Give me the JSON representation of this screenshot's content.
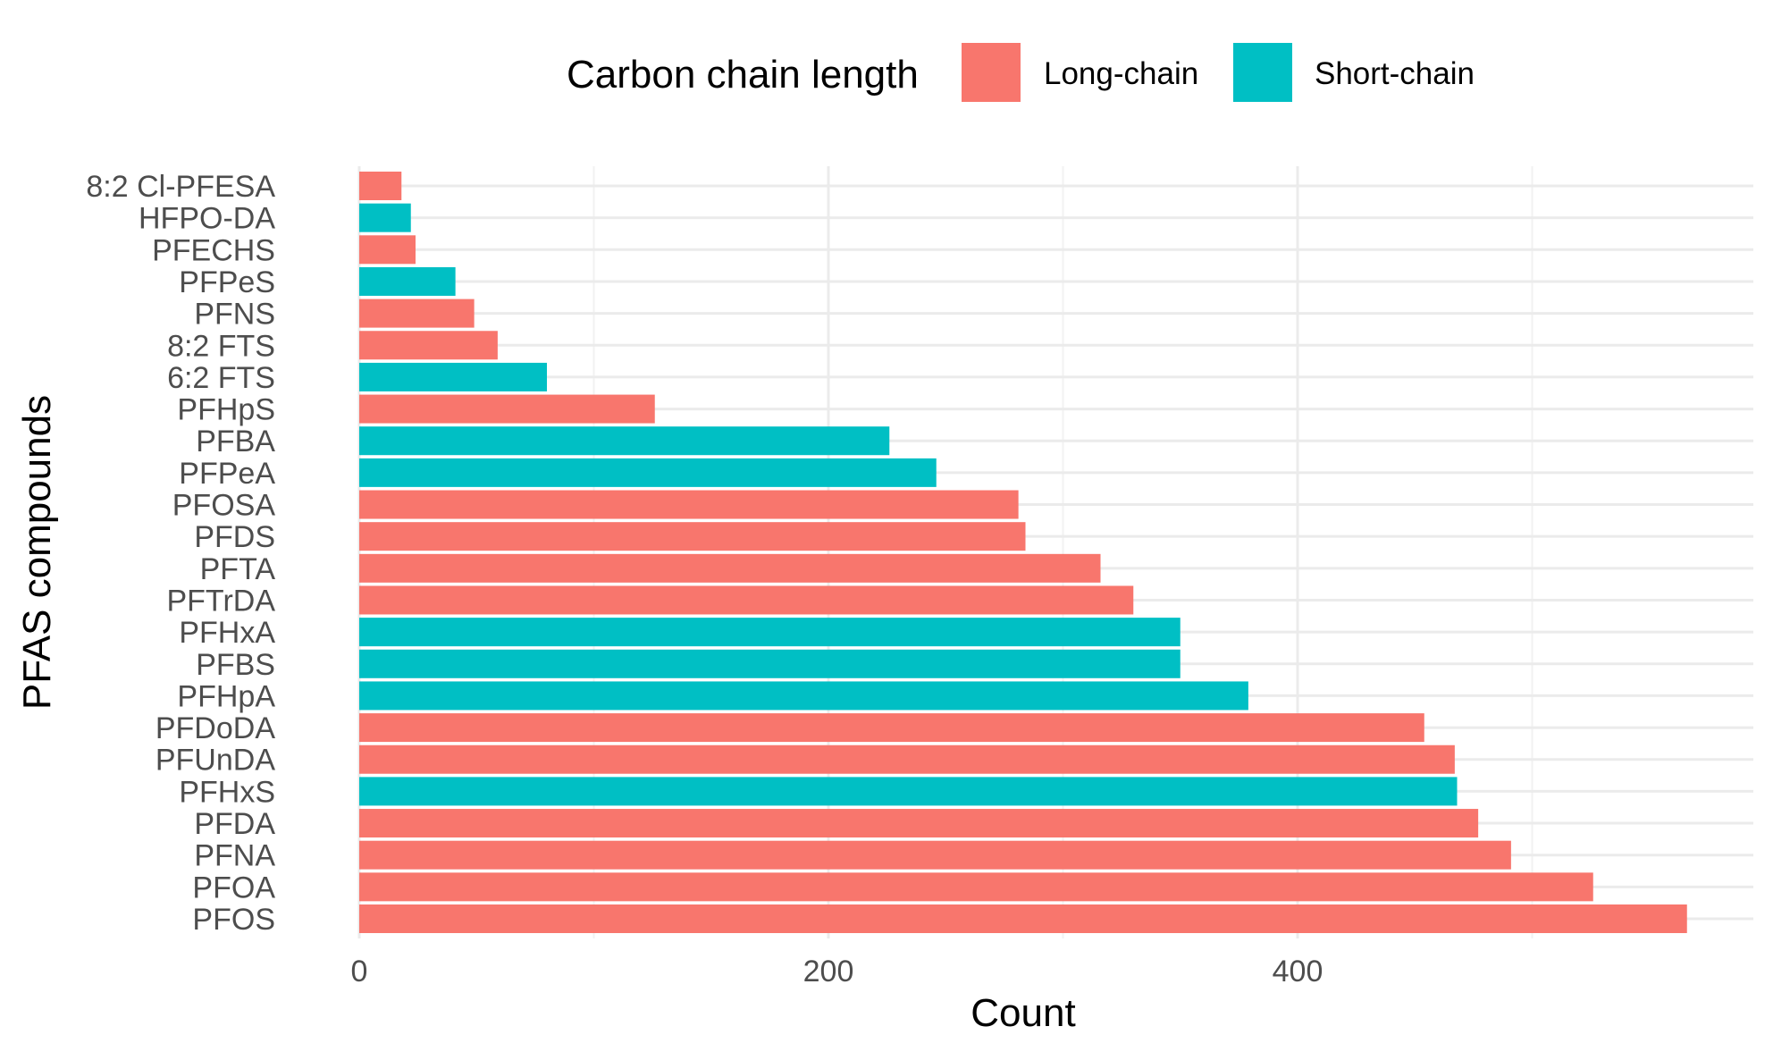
{
  "chart_data": {
    "type": "bar",
    "orientation": "horizontal",
    "title": "",
    "xlabel": "Count",
    "ylabel": "PFAS compounds",
    "xlim": [
      0,
      565
    ],
    "xticks": [
      0,
      200,
      400
    ],
    "minor_gridlines": [
      100,
      300,
      500
    ],
    "grid": true,
    "legend": {
      "title": "Carbon chain length",
      "position": "top",
      "entries": [
        {
          "label": "Long-chain",
          "color": "#F8766D"
        },
        {
          "label": "Short-chain",
          "color": "#00BFC4"
        }
      ]
    },
    "bars": [
      {
        "category": "8:2 Cl-PFESA",
        "value": 18,
        "group": "Long-chain"
      },
      {
        "category": "HFPO-DA",
        "value": 22,
        "group": "Short-chain"
      },
      {
        "category": "PFECHS",
        "value": 24,
        "group": "Long-chain"
      },
      {
        "category": "PFPeS",
        "value": 41,
        "group": "Short-chain"
      },
      {
        "category": "PFNS",
        "value": 49,
        "group": "Long-chain"
      },
      {
        "category": "8:2 FTS",
        "value": 59,
        "group": "Long-chain"
      },
      {
        "category": "6:2 FTS",
        "value": 80,
        "group": "Short-chain"
      },
      {
        "category": "PFHpS",
        "value": 126,
        "group": "Long-chain"
      },
      {
        "category": "PFBA",
        "value": 226,
        "group": "Short-chain"
      },
      {
        "category": "PFPeA",
        "value": 246,
        "group": "Short-chain"
      },
      {
        "category": "PFOSA",
        "value": 281,
        "group": "Long-chain"
      },
      {
        "category": "PFDS",
        "value": 284,
        "group": "Long-chain"
      },
      {
        "category": "PFTA",
        "value": 316,
        "group": "Long-chain"
      },
      {
        "category": "PFTrDA",
        "value": 330,
        "group": "Long-chain"
      },
      {
        "category": "PFHxA",
        "value": 350,
        "group": "Short-chain"
      },
      {
        "category": "PFBS",
        "value": 350,
        "group": "Short-chain"
      },
      {
        "category": "PFHpA",
        "value": 379,
        "group": "Short-chain"
      },
      {
        "category": "PFDoDA",
        "value": 454,
        "group": "Long-chain"
      },
      {
        "category": "PFUnDA",
        "value": 467,
        "group": "Long-chain"
      },
      {
        "category": "PFHxS",
        "value": 468,
        "group": "Short-chain"
      },
      {
        "category": "PFDA",
        "value": 477,
        "group": "Long-chain"
      },
      {
        "category": "PFNA",
        "value": 491,
        "group": "Long-chain"
      },
      {
        "category": "PFOA",
        "value": 526,
        "group": "Long-chain"
      },
      {
        "category": "PFOS",
        "value": 566,
        "group": "Long-chain"
      }
    ]
  }
}
